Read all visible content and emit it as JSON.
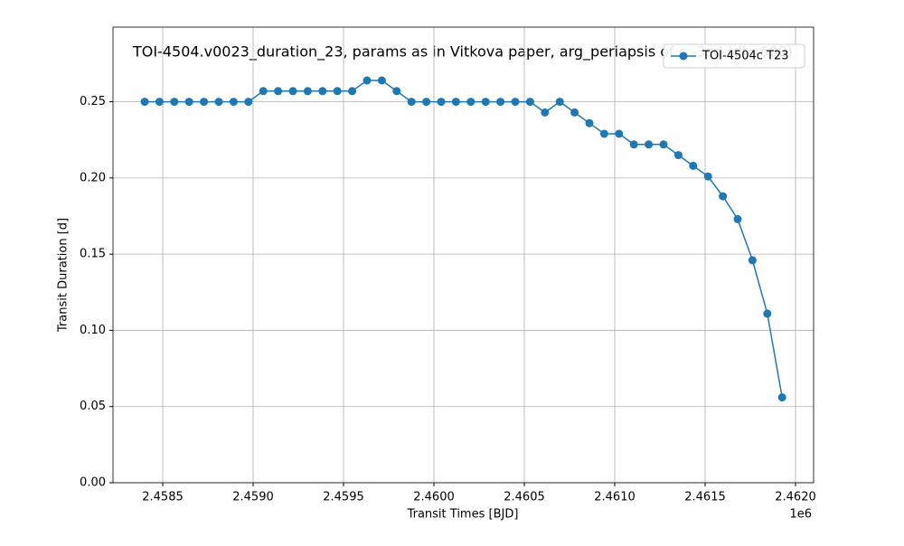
{
  "chart_data": {
    "type": "line",
    "title": "TOI-4504.v0023_duration_23, params as in Vitkova paper, arg_periapsis of c -3sd (dt=600)",
    "x_label": "Transit Times [BJD]",
    "y_label": "Transit Duration [d]",
    "x_offset_label": "1e6",
    "x": [
      2458400,
      2458482,
      2458564,
      2458646,
      2458728,
      2458810,
      2458892,
      2458974,
      2459056,
      2459138,
      2459220,
      2459302,
      2459384,
      2459466,
      2459548,
      2459630,
      2459712,
      2459794,
      2459876,
      2459958,
      2460040,
      2460122,
      2460204,
      2460286,
      2460368,
      2460450,
      2460532,
      2460614,
      2460696,
      2460778,
      2460860,
      2460942,
      2461024,
      2461106,
      2461188,
      2461270,
      2461352,
      2461434,
      2461516,
      2461598,
      2461680,
      2461762,
      2461844,
      2461926
    ],
    "series": [
      {
        "name": "TOI-4504c T23",
        "color": "#1f77b4",
        "values": [
          0.25,
          0.25,
          0.25,
          0.25,
          0.25,
          0.25,
          0.25,
          0.25,
          0.257,
          0.257,
          0.257,
          0.257,
          0.257,
          0.257,
          0.257,
          0.264,
          0.264,
          0.257,
          0.25,
          0.25,
          0.25,
          0.25,
          0.25,
          0.25,
          0.25,
          0.25,
          0.25,
          0.243,
          0.25,
          0.243,
          0.236,
          0.229,
          0.229,
          0.222,
          0.222,
          0.222,
          0.215,
          0.208,
          0.201,
          0.188,
          0.173,
          0.146,
          0.111,
          0.056
        ]
      }
    ],
    "xlim": [
      2458225,
      2462100
    ],
    "ylim": [
      0,
      0.299
    ],
    "xticks": [
      {
        "value": 2458500,
        "label": "2.4585"
      },
      {
        "value": 2459000,
        "label": "2.4590"
      },
      {
        "value": 2459500,
        "label": "2.4595"
      },
      {
        "value": 2460000,
        "label": "2.4600"
      },
      {
        "value": 2460500,
        "label": "2.4605"
      },
      {
        "value": 2461000,
        "label": "2.4610"
      },
      {
        "value": 2461500,
        "label": "2.4615"
      },
      {
        "value": 2462000,
        "label": "2.4620"
      }
    ],
    "yticks": [
      {
        "value": 0,
        "label": "0.00"
      },
      0.05,
      {
        "value": 0.1,
        "label": "0.10"
      },
      0.15,
      {
        "value": 0.2,
        "label": "0.20"
      },
      0.25
    ],
    "grid": true,
    "legend": "upper right"
  }
}
